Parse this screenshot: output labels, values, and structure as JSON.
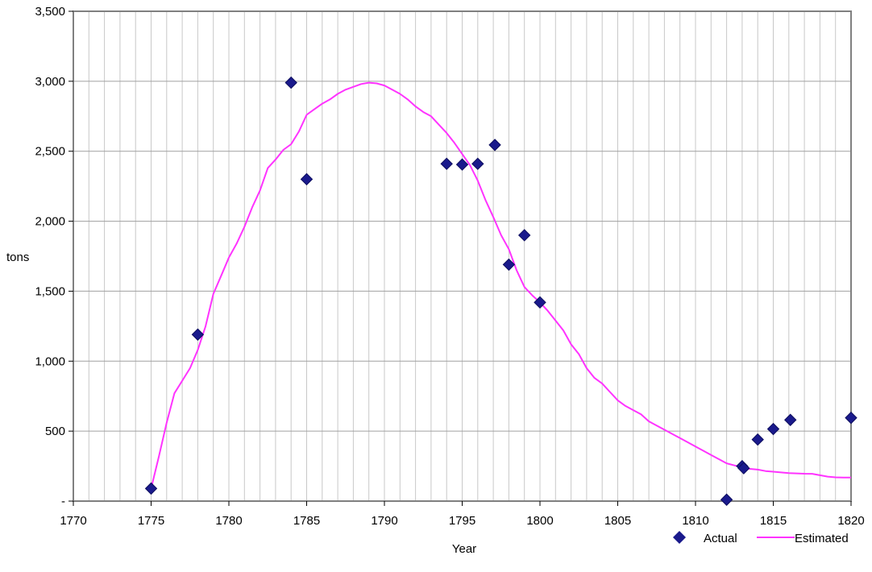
{
  "chart_data": {
    "type": "scatter",
    "title": "",
    "xlabel": "Year",
    "ylabel": "tons",
    "xlim": [
      1770,
      1820
    ],
    "ylim": [
      0,
      3500
    ],
    "x_ticks": [
      1770,
      1775,
      1780,
      1785,
      1790,
      1795,
      1800,
      1805,
      1810,
      1815,
      1820
    ],
    "x_tick_labels": [
      "1770",
      "1775",
      "1780",
      "1785",
      "1790",
      "1795",
      "1800",
      "1805",
      "1810",
      "1815",
      "1820"
    ],
    "y_ticks": [
      0,
      500,
      1000,
      1500,
      2000,
      2500,
      3000,
      3500
    ],
    "y_tick_labels": [
      "-",
      "500",
      "1,000",
      "1,500",
      "2,000",
      "2,500",
      "3,000",
      "3,500"
    ],
    "grid": true,
    "legend_position": "bottom-right",
    "series": [
      {
        "name": "Actual",
        "kind": "scatter",
        "color": "#1a1a8c",
        "marker": "diamond",
        "points": [
          [
            1775,
            90
          ],
          [
            1778,
            1190
          ],
          [
            1784,
            2990
          ],
          [
            1785,
            2300
          ],
          [
            1794,
            2410
          ],
          [
            1795,
            2405
          ],
          [
            1796,
            2410
          ],
          [
            1797.1,
            2545
          ],
          [
            1798,
            1690
          ],
          [
            1799,
            1900
          ],
          [
            1800,
            1420
          ],
          [
            1812,
            10
          ],
          [
            1813,
            250
          ],
          [
            1813.1,
            235
          ],
          [
            1814,
            440
          ],
          [
            1815,
            515
          ],
          [
            1816.1,
            580
          ],
          [
            1820,
            595
          ]
        ]
      },
      {
        "name": "Estimated",
        "kind": "line",
        "color": "#ff33ff",
        "points": [
          [
            1775,
            90
          ],
          [
            1775.5,
            320
          ],
          [
            1776,
            560
          ],
          [
            1776.5,
            770
          ],
          [
            1777,
            860
          ],
          [
            1777.5,
            950
          ],
          [
            1778,
            1080
          ],
          [
            1778.5,
            1250
          ],
          [
            1779,
            1480
          ],
          [
            1779.5,
            1610
          ],
          [
            1780,
            1740
          ],
          [
            1780.5,
            1840
          ],
          [
            1781,
            1960
          ],
          [
            1781.5,
            2100
          ],
          [
            1782,
            2220
          ],
          [
            1782.5,
            2380
          ],
          [
            1783,
            2440
          ],
          [
            1783.5,
            2510
          ],
          [
            1784,
            2550
          ],
          [
            1784.5,
            2640
          ],
          [
            1785,
            2760
          ],
          [
            1785.5,
            2800
          ],
          [
            1786,
            2840
          ],
          [
            1786.5,
            2870
          ],
          [
            1787,
            2910
          ],
          [
            1787.5,
            2940
          ],
          [
            1788,
            2960
          ],
          [
            1788.5,
            2980
          ],
          [
            1789,
            2990
          ],
          [
            1789.5,
            2985
          ],
          [
            1790,
            2970
          ],
          [
            1790.5,
            2940
          ],
          [
            1791,
            2910
          ],
          [
            1791.5,
            2870
          ],
          [
            1792,
            2820
          ],
          [
            1792.5,
            2780
          ],
          [
            1793,
            2750
          ],
          [
            1793.5,
            2690
          ],
          [
            1794,
            2630
          ],
          [
            1794.5,
            2560
          ],
          [
            1795,
            2480
          ],
          [
            1795.5,
            2400
          ],
          [
            1796,
            2290
          ],
          [
            1796.5,
            2150
          ],
          [
            1797,
            2030
          ],
          [
            1797.5,
            1900
          ],
          [
            1798,
            1800
          ],
          [
            1798.5,
            1650
          ],
          [
            1799,
            1530
          ],
          [
            1799.5,
            1470
          ],
          [
            1800,
            1420
          ],
          [
            1800.5,
            1360
          ],
          [
            1801,
            1290
          ],
          [
            1801.5,
            1220
          ],
          [
            1802,
            1120
          ],
          [
            1802.5,
            1050
          ],
          [
            1803,
            950
          ],
          [
            1803.5,
            880
          ],
          [
            1804,
            840
          ],
          [
            1804.5,
            780
          ],
          [
            1805,
            720
          ],
          [
            1805.5,
            680
          ],
          [
            1806,
            650
          ],
          [
            1806.5,
            620
          ],
          [
            1807,
            570
          ],
          [
            1807.5,
            540
          ],
          [
            1808,
            510
          ],
          [
            1808.5,
            480
          ],
          [
            1809,
            450
          ],
          [
            1809.5,
            420
          ],
          [
            1810,
            390
          ],
          [
            1810.5,
            360
          ],
          [
            1811,
            330
          ],
          [
            1811.5,
            300
          ],
          [
            1812,
            270
          ],
          [
            1812.5,
            255
          ],
          [
            1813,
            240
          ],
          [
            1813.5,
            230
          ],
          [
            1814,
            225
          ],
          [
            1814.5,
            215
          ],
          [
            1815,
            210
          ],
          [
            1815.5,
            205
          ],
          [
            1816,
            200
          ],
          [
            1816.5,
            198
          ],
          [
            1817,
            196
          ],
          [
            1817.5,
            195
          ],
          [
            1818,
            185
          ],
          [
            1818.5,
            175
          ],
          [
            1819,
            170
          ],
          [
            1819.5,
            168
          ],
          [
            1820,
            168
          ]
        ]
      }
    ]
  }
}
